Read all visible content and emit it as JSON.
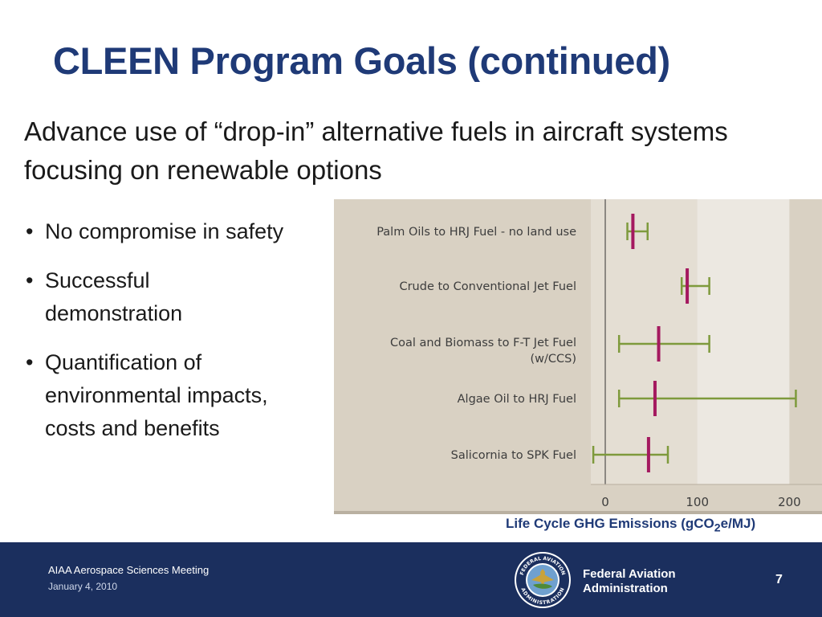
{
  "slide": {
    "title": "CLEEN Program Goals (continued)",
    "subtitle": "Advance use of “drop-in” alternative fuels in aircraft systems focusing on renewable options",
    "bullets": [
      "No compromise in safety",
      "Successful demonstration",
      "Quantification of environmental impacts, costs and benefits"
    ]
  },
  "chart_data": {
    "type": "range",
    "caption_prefix": "Life Cycle GHG Emissions (gCO",
    "caption_subscript": "2",
    "caption_suffix": "e/MJ)",
    "categories": [
      [
        "Palm Oils to HRJ Fuel - no land use"
      ],
      [
        "Crude to Conventional Jet Fuel"
      ],
      [
        "Coal and Biomass to F-T Jet Fuel",
        "(w/CCS)"
      ],
      [
        "Algae Oil to HRJ Fuel"
      ],
      [
        "Salicornia to SPK Fuel"
      ]
    ],
    "series": [
      {
        "low": 24,
        "high": 46,
        "point": 30
      },
      {
        "low": 83,
        "high": 113,
        "point": 89
      },
      {
        "low": 15,
        "high": 113,
        "point": 58
      },
      {
        "low": 15,
        "high": 207,
        "point": 54
      },
      {
        "low": -13,
        "high": 68,
        "point": 47
      }
    ],
    "xlim": [
      -25,
      235
    ],
    "xticks": [
      0,
      100,
      200
    ],
    "colors": {
      "range": "#7e9a3c",
      "point": "#a4195f",
      "background": "#d9d1c3",
      "band_light": "#ece8e1",
      "band_mid": "#e4ded3"
    }
  },
  "footer": {
    "meeting": "AIAA Aerospace Sciences Meeting",
    "date": "January 4, 2010",
    "agency_line1": "Federal Aviation",
    "agency_line2": "Administration",
    "page": "7",
    "seal_text_top": "FEDERAL AVIATION",
    "seal_text_bottom": "ADMINISTRATION"
  }
}
